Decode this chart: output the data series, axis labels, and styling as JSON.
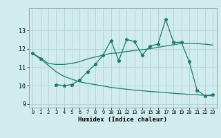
{
  "xlabel": "Humidex (Indice chaleur)",
  "x_values": [
    0,
    1,
    2,
    3,
    4,
    5,
    6,
    7,
    8,
    9,
    10,
    11,
    12,
    13,
    14,
    15,
    16,
    17,
    18,
    19,
    20,
    21,
    22,
    23
  ],
  "zigzag": [
    11.75,
    11.45,
    null,
    10.05,
    10.0,
    10.05,
    10.3,
    10.75,
    11.15,
    11.65,
    12.45,
    11.35,
    12.5,
    12.4,
    11.65,
    12.15,
    12.25,
    13.6,
    12.35,
    12.35,
    11.3,
    9.75,
    9.45,
    9.5
  ],
  "line_upper": [
    11.75,
    11.5,
    11.2,
    11.15,
    11.15,
    11.2,
    11.3,
    11.45,
    11.55,
    11.65,
    11.75,
    11.78,
    11.85,
    11.9,
    11.95,
    12.0,
    12.08,
    12.15,
    12.22,
    12.28,
    12.3,
    12.28,
    12.25,
    12.2
  ],
  "line_lower": [
    11.75,
    11.45,
    11.1,
    10.75,
    10.5,
    10.35,
    10.2,
    10.12,
    10.05,
    9.98,
    9.9,
    9.85,
    9.8,
    9.75,
    9.72,
    9.68,
    9.65,
    9.62,
    9.58,
    9.55,
    9.52,
    9.5,
    9.47,
    9.44
  ],
  "color": "#1a7a6e",
  "bg_color": "#d0ecec",
  "grid_color": "#aed4d4",
  "ylim": [
    8.8,
    14.2
  ],
  "yticks": [
    9,
    10,
    11,
    12,
    13
  ],
  "xlim": [
    -0.5,
    23.5
  ],
  "fig_width": 3.2,
  "fig_height": 2.0,
  "dpi": 100
}
